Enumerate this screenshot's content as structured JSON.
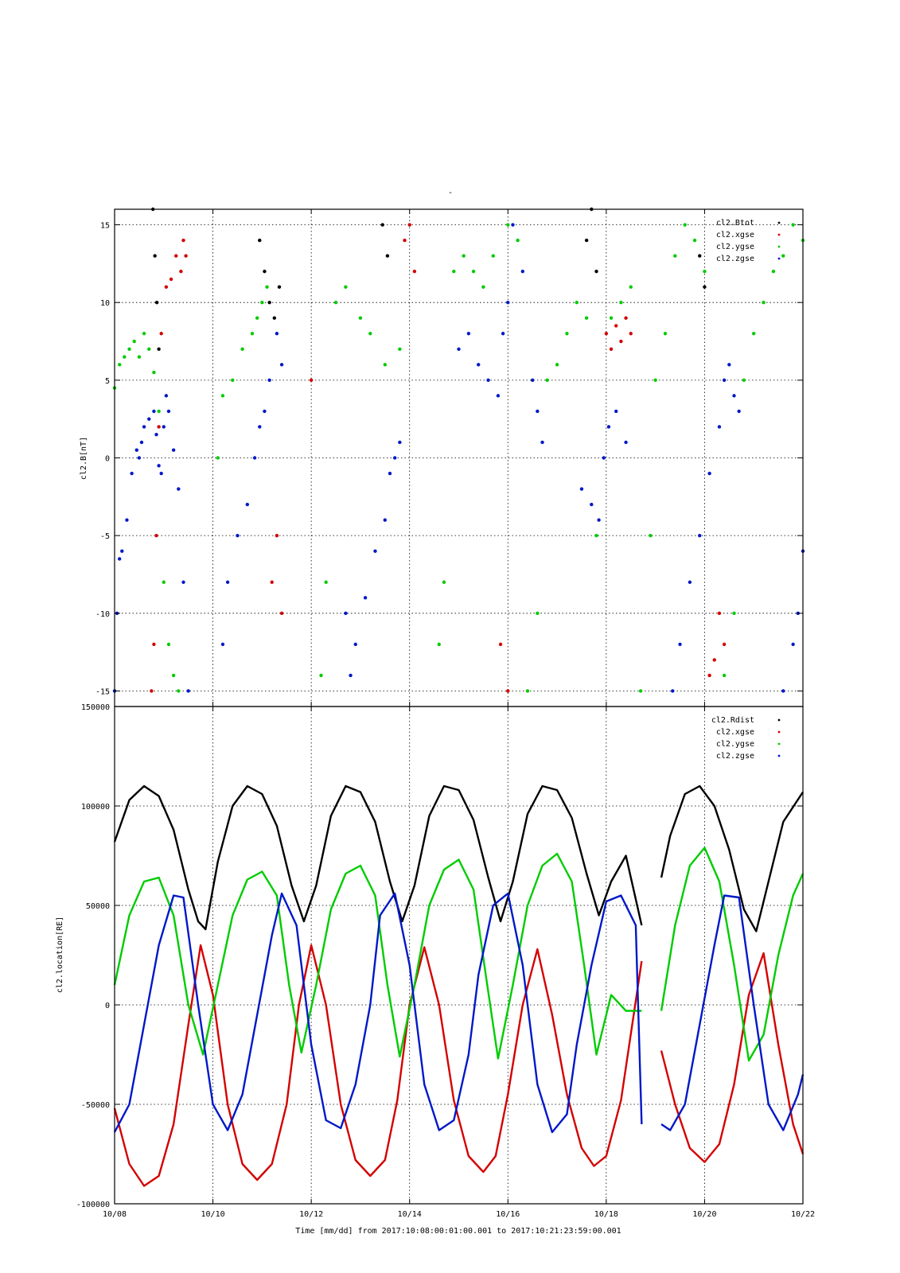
{
  "top_title": "-",
  "footer": {
    "xlabel": "Time [mm/dd]  from 2017:10:08:00:01:00.001  to  2017:10:21:23:59:00.001"
  },
  "colors": {
    "black": "#000000",
    "red": "#d40000",
    "green": "#00cc00",
    "blue": "#0018c8"
  },
  "chart_data": [
    {
      "type": "scatter",
      "ylabel": "cl2.B[nT]",
      "ylim": [
        -16,
        16
      ],
      "xlim_days": [
        0,
        14
      ],
      "x_tick_labels": [],
      "y_ticks": [
        -15,
        -10,
        -5,
        0,
        5,
        10,
        15
      ],
      "y_tick_labels": [
        "-15",
        "-10",
        "-5",
        "0",
        "5",
        "10",
        "15"
      ],
      "grid": true,
      "legend_position": "top-right",
      "legend": [
        "cl2.Btot",
        "cl2.xgse",
        "cl2.ygse",
        "cl2.zgse"
      ],
      "series": [
        {
          "name": "cl2.Btot",
          "color": "#000000",
          "x": [
            0.78,
            0.82,
            0.86,
            0.9,
            2.95,
            3.05,
            3.15,
            3.25,
            3.35,
            5.45,
            5.55,
            9.6,
            9.7,
            9.8,
            11.9,
            12.0
          ],
          "y": [
            16,
            13,
            10,
            7,
            14,
            12,
            10,
            9,
            11,
            15,
            13,
            14,
            16,
            12,
            13,
            11
          ]
        },
        {
          "name": "cl2.xgse",
          "color": "#d40000",
          "x": [
            0.75,
            0.8,
            0.85,
            0.9,
            0.95,
            1.05,
            1.15,
            1.25,
            1.35,
            1.4,
            1.45,
            3.2,
            3.3,
            3.4,
            4.0,
            5.9,
            6.0,
            6.1,
            7.85,
            8.0,
            10.0,
            10.1,
            10.2,
            10.3,
            10.4,
            10.5,
            12.1,
            12.2,
            12.3,
            12.4
          ],
          "y": [
            -15,
            -12,
            -5,
            2,
            8,
            11,
            11.5,
            13,
            12,
            14,
            13,
            -8,
            -5,
            -10,
            5,
            14,
            15,
            12,
            -12,
            -15,
            8,
            7,
            8.5,
            7.5,
            9,
            8,
            -14,
            -13,
            -10,
            -12
          ]
        },
        {
          "name": "cl2.ygse",
          "color": "#00cc00",
          "x": [
            0.0,
            0.1,
            0.2,
            0.3,
            0.4,
            0.5,
            0.6,
            0.7,
            0.8,
            0.9,
            1.0,
            1.1,
            1.2,
            1.3,
            2.1,
            2.2,
            2.4,
            2.6,
            2.8,
            2.9,
            3.0,
            3.1,
            4.2,
            4.3,
            4.5,
            4.7,
            5.0,
            5.2,
            5.5,
            5.8,
            6.6,
            6.7,
            6.9,
            7.1,
            7.3,
            7.5,
            7.7,
            8.0,
            8.2,
            8.4,
            8.6,
            8.8,
            9.0,
            9.2,
            9.4,
            9.6,
            9.8,
            10.1,
            10.3,
            10.5,
            10.7,
            10.9,
            11.0,
            11.2,
            11.4,
            11.6,
            11.8,
            12.0,
            12.4,
            12.6,
            12.8,
            13.0,
            13.2,
            13.4,
            13.6,
            13.8,
            14.0
          ],
          "y": [
            4.5,
            6,
            6.5,
            7,
            7.5,
            6.5,
            8,
            7,
            5.5,
            3,
            -8,
            -12,
            -14,
            -15,
            0,
            4,
            5,
            7,
            8,
            9,
            10,
            11,
            -14,
            -8,
            10,
            11,
            9,
            8,
            6,
            7,
            -12,
            -8,
            12,
            13,
            12,
            11,
            13,
            15,
            14,
            -15,
            -10,
            5,
            6,
            8,
            10,
            9,
            -5,
            9,
            10,
            11,
            -15,
            -5,
            5,
            8,
            13,
            15,
            14,
            12,
            -14,
            -10,
            5,
            8,
            10,
            12,
            13,
            15,
            14
          ]
        },
        {
          "name": "cl2.zgse",
          "color": "#0018c8",
          "x": [
            0.0,
            0.05,
            0.1,
            0.15,
            0.25,
            0.35,
            0.45,
            0.5,
            0.55,
            0.6,
            0.7,
            0.8,
            0.85,
            0.9,
            0.95,
            1.0,
            1.05,
            1.1,
            1.2,
            1.3,
            1.4,
            1.5,
            2.2,
            2.3,
            2.5,
            2.7,
            2.85,
            2.95,
            3.05,
            3.15,
            3.3,
            3.4,
            4.7,
            4.8,
            4.9,
            5.1,
            5.3,
            5.5,
            5.6,
            5.7,
            5.8,
            7.0,
            7.2,
            7.4,
            7.6,
            7.8,
            7.9,
            8.0,
            8.1,
            8.3,
            8.5,
            8.6,
            8.7,
            9.5,
            9.7,
            9.85,
            9.95,
            10.05,
            10.2,
            10.4,
            11.35,
            11.5,
            11.7,
            11.9,
            12.1,
            12.3,
            12.4,
            12.5,
            12.6,
            12.7,
            13.6,
            13.8,
            13.9,
            14.0
          ],
          "y": [
            -15,
            -10,
            -6.5,
            -6,
            -4,
            -1,
            0.5,
            0,
            1,
            2,
            2.5,
            3,
            1.5,
            -0.5,
            -1,
            2,
            4,
            3,
            0.5,
            -2,
            -8,
            -15,
            -12,
            -8,
            -5,
            -3,
            0,
            2,
            3,
            5,
            8,
            6,
            -10,
            -14,
            -12,
            -9,
            -6,
            -4,
            -1,
            0,
            1,
            7,
            8,
            6,
            5,
            4,
            8,
            10,
            15,
            12,
            5,
            3,
            1,
            -2,
            -3,
            -4,
            0,
            2,
            3,
            1,
            -15,
            -12,
            -8,
            -5,
            -1,
            2,
            5,
            6,
            4,
            3,
            -15,
            -12,
            -10,
            -6
          ]
        }
      ]
    },
    {
      "type": "line",
      "ylabel": "cl2.location[RE]",
      "ylim": [
        -100000,
        150000
      ],
      "xlim_days": [
        0,
        14
      ],
      "x_tick_labels": [
        "10/08",
        "10/10",
        "10/12",
        "10/14",
        "10/16",
        "10/18",
        "10/20",
        "10/22"
      ],
      "y_ticks": [
        -100000,
        -50000,
        0,
        50000,
        100000,
        150000
      ],
      "y_tick_labels": [
        "-100000",
        "-50000",
        "0",
        "50000",
        "100000",
        "150000"
      ],
      "grid": true,
      "legend_position": "top-right",
      "legend": [
        "cl2.Rdist",
        "cl2.xgse",
        "cl2.ygse",
        "cl2.zgse"
      ],
      "data_gap_days": [
        10.72,
        11.12
      ],
      "series": [
        {
          "name": "cl2.Rdist",
          "color": "#000000",
          "x": [
            0.0,
            0.3,
            0.6,
            0.9,
            1.2,
            1.5,
            1.7,
            1.85,
            2.1,
            2.4,
            2.7,
            3.0,
            3.3,
            3.6,
            3.85,
            4.1,
            4.4,
            4.7,
            5.0,
            5.3,
            5.6,
            5.85,
            6.1,
            6.4,
            6.7,
            7.0,
            7.3,
            7.6,
            7.85,
            8.1,
            8.4,
            8.7,
            9.0,
            9.3,
            9.6,
            9.85,
            10.1,
            10.4,
            10.72,
            11.12,
            11.3,
            11.6,
            11.9,
            12.2,
            12.5,
            12.8,
            13.05,
            13.3,
            13.6,
            14.0
          ],
          "y": [
            82000,
            103000,
            110000,
            105000,
            88000,
            58000,
            42000,
            38000,
            72000,
            100000,
            110000,
            106000,
            90000,
            60000,
            42000,
            60000,
            95000,
            110000,
            107000,
            92000,
            62000,
            42000,
            60000,
            95000,
            110000,
            108000,
            93000,
            64000,
            42000,
            62000,
            96000,
            110000,
            108000,
            94000,
            66000,
            45000,
            62000,
            75000,
            40000,
            64000,
            85000,
            106000,
            110000,
            100000,
            78000,
            48000,
            37000,
            62000,
            92000,
            107000
          ]
        },
        {
          "name": "cl2.xgse",
          "color": "#d40000",
          "x": [
            0.0,
            0.3,
            0.6,
            0.9,
            1.2,
            1.5,
            1.75,
            2.0,
            2.3,
            2.6,
            2.9,
            3.2,
            3.5,
            3.75,
            4.0,
            4.3,
            4.6,
            4.9,
            5.2,
            5.5,
            5.75,
            6.0,
            6.3,
            6.6,
            6.9,
            7.2,
            7.5,
            7.75,
            8.0,
            8.3,
            8.6,
            8.9,
            9.2,
            9.5,
            9.75,
            10.0,
            10.3,
            10.72,
            11.12,
            11.4,
            11.7,
            12.0,
            12.3,
            12.6,
            12.9,
            13.2,
            13.5,
            13.8,
            14.0
          ],
          "y": [
            -52000,
            -80000,
            -91000,
            -86000,
            -60000,
            -10000,
            30000,
            5000,
            -50000,
            -80000,
            -88000,
            -80000,
            -50000,
            0,
            30000,
            0,
            -50000,
            -78000,
            -86000,
            -78000,
            -48000,
            0,
            29000,
            0,
            -48000,
            -76000,
            -84000,
            -76000,
            -45000,
            0,
            28000,
            -5000,
            -45000,
            -72000,
            -81000,
            -76000,
            -48000,
            22000,
            -23000,
            -50000,
            -72000,
            -79000,
            -70000,
            -40000,
            5000,
            26000,
            -20000,
            -60000,
            -75000
          ]
        },
        {
          "name": "cl2.ygse",
          "color": "#00cc00",
          "x": [
            0.0,
            0.3,
            0.6,
            0.9,
            1.2,
            1.5,
            1.8,
            2.1,
            2.4,
            2.7,
            3.0,
            3.3,
            3.55,
            3.8,
            4.1,
            4.4,
            4.7,
            5.0,
            5.3,
            5.55,
            5.8,
            6.1,
            6.4,
            6.7,
            7.0,
            7.3,
            7.55,
            7.8,
            8.1,
            8.4,
            8.7,
            9.0,
            9.3,
            9.55,
            9.8,
            10.1,
            10.4,
            10.72,
            11.12,
            11.4,
            11.7,
            12.0,
            12.3,
            12.6,
            12.9,
            13.2,
            13.5,
            13.8,
            14.0
          ],
          "y": [
            10000,
            45000,
            62000,
            64000,
            45000,
            0,
            -25000,
            10000,
            45000,
            63000,
            67000,
            55000,
            10000,
            -24000,
            10000,
            48000,
            66000,
            70000,
            55000,
            10000,
            -26000,
            10000,
            50000,
            68000,
            73000,
            58000,
            15000,
            -27000,
            10000,
            50000,
            70000,
            76000,
            62000,
            20000,
            -25000,
            5000,
            -3000,
            -3000,
            -3000,
            40000,
            70000,
            79000,
            62000,
            20000,
            -28000,
            -15000,
            25000,
            55000,
            66000
          ]
        },
        {
          "name": "cl2.zgse",
          "color": "#0018c8",
          "x": [
            0.0,
            0.3,
            0.6,
            0.9,
            1.2,
            1.4,
            1.7,
            2.0,
            2.3,
            2.6,
            2.9,
            3.2,
            3.4,
            3.7,
            4.0,
            4.3,
            4.6,
            4.9,
            5.2,
            5.4,
            5.7,
            6.0,
            6.3,
            6.6,
            6.9,
            7.2,
            7.4,
            7.7,
            8.0,
            8.3,
            8.6,
            8.9,
            9.2,
            9.4,
            9.7,
            10.0,
            10.3,
            10.6,
            10.72,
            11.12,
            11.3,
            11.6,
            11.9,
            12.2,
            12.4,
            12.7,
            13.0,
            13.3,
            13.6,
            13.9,
            14.0
          ],
          "y": [
            -64000,
            -50000,
            -10000,
            30000,
            55000,
            54000,
            0,
            -50000,
            -63000,
            -45000,
            -5000,
            35000,
            56000,
            40000,
            -20000,
            -58000,
            -62000,
            -40000,
            0,
            45000,
            56000,
            20000,
            -40000,
            -63000,
            -58000,
            -25000,
            15000,
            50000,
            56000,
            20000,
            -40000,
            -64000,
            -55000,
            -20000,
            20000,
            52000,
            55000,
            40000,
            -60000,
            -60000,
            -63000,
            -50000,
            -10000,
            30000,
            55000,
            54000,
            0,
            -50000,
            -63000,
            -45000,
            -35000
          ]
        }
      ]
    }
  ]
}
